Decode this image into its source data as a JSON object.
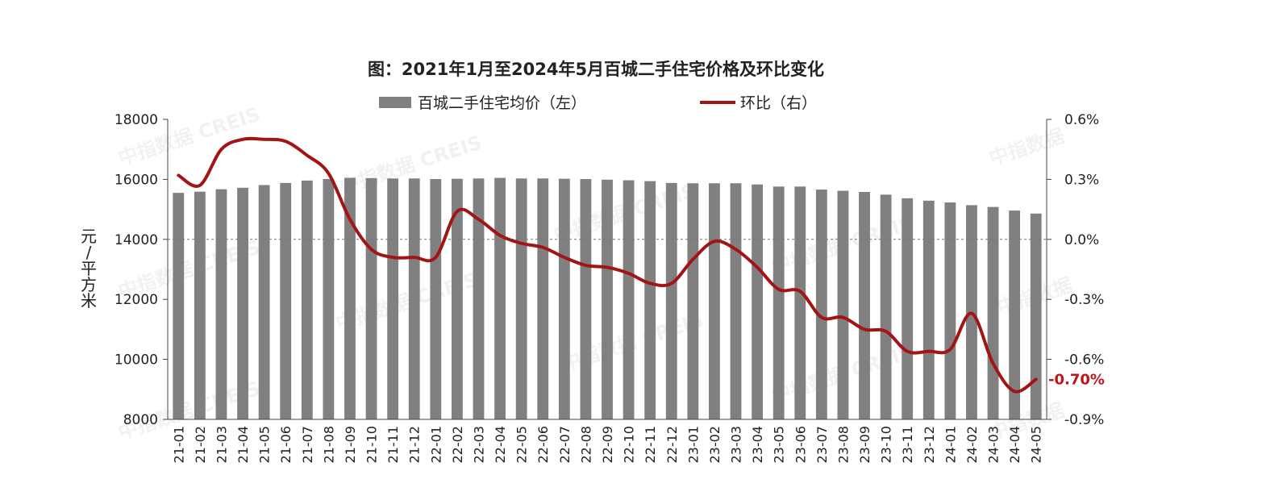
{
  "chart_data": {
    "type": "bar",
    "title": "图：2021年1月至2024年5月百城二手住宅价格及环比变化",
    "ylabel": "元/平方米",
    "ylabel_chars": [
      "元",
      "/",
      "平",
      "方",
      "米"
    ],
    "ylim": [
      8000,
      18000
    ],
    "y2lim": [
      -0.9,
      0.6
    ],
    "yticks": [
      "8000",
      "10000",
      "12000",
      "14000",
      "16000",
      "18000"
    ],
    "y2ticks": [
      "-0.9%",
      "-0.6%",
      "-0.3%",
      "0.0%",
      "0.3%",
      "0.6%"
    ],
    "legend_position": "top",
    "grid": false,
    "categories": [
      "21-01",
      "21-02",
      "21-03",
      "21-04",
      "21-05",
      "21-06",
      "21-07",
      "21-08",
      "21-09",
      "21-10",
      "21-11",
      "21-12",
      "22-01",
      "22-02",
      "22-03",
      "22-04",
      "22-05",
      "22-06",
      "22-07",
      "22-08",
      "22-09",
      "22-10",
      "22-11",
      "22-12",
      "23-01",
      "23-02",
      "23-03",
      "23-04",
      "23-05",
      "23-06",
      "23-07",
      "23-08",
      "23-09",
      "23-10",
      "23-11",
      "23-12",
      "24-01",
      "24-02",
      "24-03",
      "24-04",
      "24-05"
    ],
    "series": [
      {
        "name": "百城二手住宅均价（左）",
        "type": "bar",
        "axis": "left",
        "color": "#808080",
        "values": [
          15550,
          15590,
          15670,
          15720,
          15810,
          15880,
          15960,
          16010,
          16050,
          16040,
          16030,
          16030,
          16010,
          16020,
          16030,
          16050,
          16030,
          16030,
          16020,
          16010,
          15990,
          15970,
          15940,
          15880,
          15870,
          15870,
          15870,
          15830,
          15760,
          15760,
          15660,
          15620,
          15580,
          15490,
          15370,
          15290,
          15230,
          15140,
          15080,
          14960,
          14860
        ]
      },
      {
        "name": "环比（右）",
        "type": "line",
        "axis": "right",
        "color": "#a31515",
        "values": [
          0.32,
          0.27,
          0.45,
          0.5,
          0.5,
          0.49,
          0.42,
          0.33,
          0.1,
          -0.05,
          -0.09,
          -0.09,
          -0.09,
          0.14,
          0.1,
          0.02,
          -0.02,
          -0.04,
          -0.09,
          -0.13,
          -0.14,
          -0.17,
          -0.22,
          -0.22,
          -0.1,
          -0.01,
          -0.05,
          -0.14,
          -0.25,
          -0.26,
          -0.39,
          -0.39,
          -0.45,
          -0.46,
          -0.56,
          -0.56,
          -0.55,
          -0.37,
          -0.62,
          -0.76,
          -0.7
        ]
      }
    ],
    "annotation": {
      "text": "-0.70%",
      "color": "#c0141d"
    },
    "watermark": [
      "中指数据 CREIS",
      "中指数据"
    ]
  }
}
